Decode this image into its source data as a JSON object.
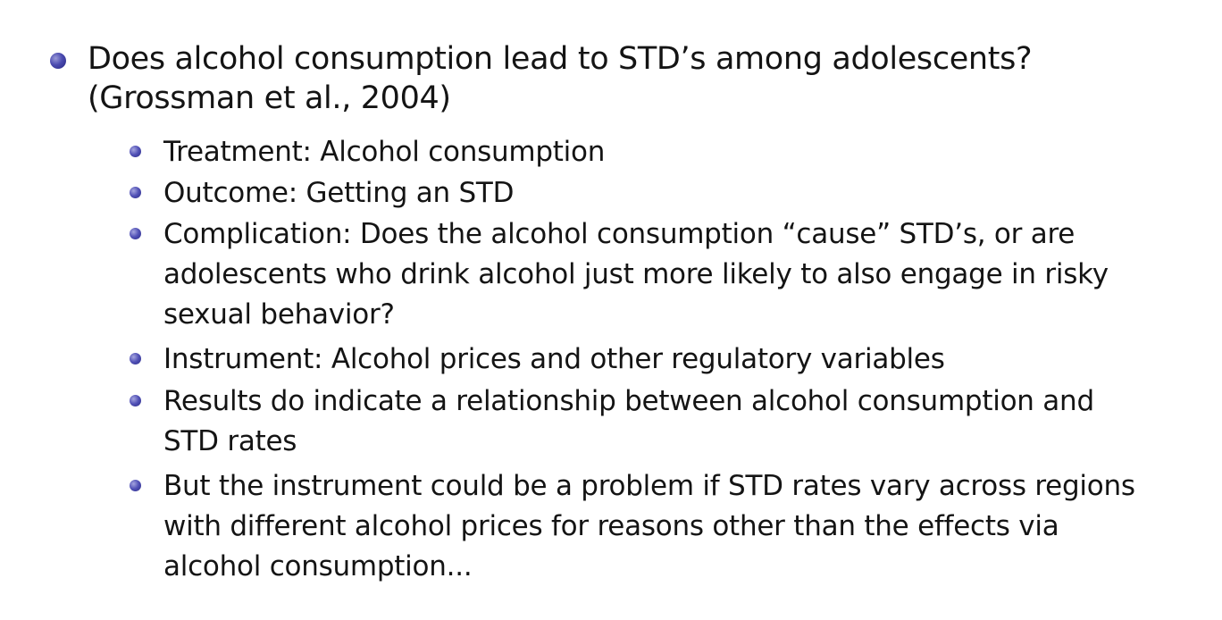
{
  "main_point": "Does alcohol consumption lead to STD’s among adolescents?\n(Grossman et al., 2004)",
  "sub_points": [
    "Treatment: Alcohol consumption",
    "Outcome: Getting an STD",
    "Complication: Does the alcohol consumption “cause” STD’s, or are\nadolescents who drink alcohol just more likely to also engage in risky\nsexual behavior?",
    "Instrument: Alcohol prices and other regulatory variables",
    "Results do indicate a relationship between alcohol consumption and\nSTD rates",
    "But the instrument could be a problem if STD rates vary across regions\nwith different alcohol prices for reasons other than the effects via\nalcohol consumption..."
  ]
}
